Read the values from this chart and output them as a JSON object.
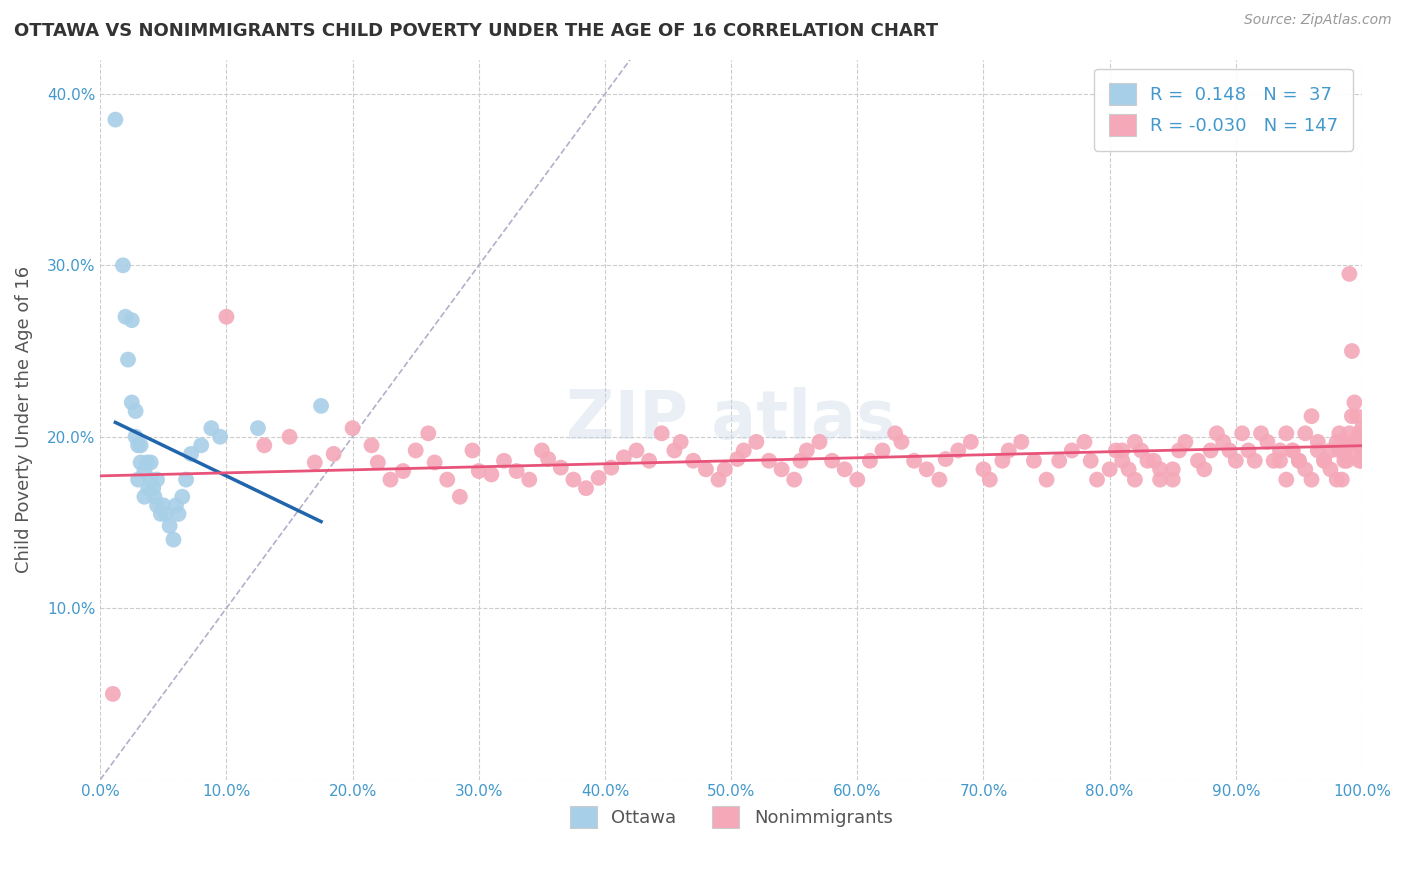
{
  "title": "OTTAWA VS NONIMMIGRANTS CHILD POVERTY UNDER THE AGE OF 16 CORRELATION CHART",
  "source": "Source: ZipAtlas.com",
  "ylabel": "Child Poverty Under the Age of 16",
  "xlim": [
    0,
    1.0
  ],
  "ylim": [
    0,
    0.42
  ],
  "xticks": [
    0.0,
    0.1,
    0.2,
    0.3,
    0.4,
    0.5,
    0.6,
    0.7,
    0.8,
    0.9,
    1.0
  ],
  "xticklabels": [
    "0.0%",
    "10.0%",
    "20.0%",
    "30.0%",
    "40.0%",
    "50.0%",
    "60.0%",
    "70.0%",
    "80.0%",
    "90.0%",
    "100.0%"
  ],
  "yticks": [
    0.0,
    0.1,
    0.2,
    0.3,
    0.4
  ],
  "yticklabels": [
    "",
    "10.0%",
    "20.0%",
    "30.0%",
    "40.0%"
  ],
  "ottawa_color": "#a8cfe8",
  "nonimmigrant_color": "#f4a8b8",
  "ottawa_trend_color": "#2166ac",
  "nonimmigrant_trend_color": "#e8537a",
  "diagonal_color": "#b0b0cc",
  "R_ottawa": 0.148,
  "N_ottawa": 37,
  "R_nonimmigrant": -0.03,
  "N_nonimmigrant": 147,
  "legend_label_ottawa": "Ottawa",
  "legend_label_nonimmigrant": "Nonimmigrants",
  "ottawa_x": [
    0.012,
    0.018,
    0.02,
    0.022,
    0.025,
    0.025,
    0.028,
    0.028,
    0.03,
    0.03,
    0.032,
    0.032,
    0.035,
    0.035,
    0.037,
    0.038,
    0.04,
    0.04,
    0.042,
    0.043,
    0.045,
    0.045,
    0.048,
    0.05,
    0.052,
    0.055,
    0.058,
    0.06,
    0.062,
    0.065,
    0.068,
    0.072,
    0.08,
    0.088,
    0.095,
    0.125,
    0.175
  ],
  "ottawa_y": [
    0.385,
    0.3,
    0.27,
    0.245,
    0.268,
    0.22,
    0.215,
    0.2,
    0.195,
    0.175,
    0.195,
    0.185,
    0.18,
    0.165,
    0.185,
    0.17,
    0.185,
    0.175,
    0.17,
    0.165,
    0.175,
    0.16,
    0.155,
    0.16,
    0.155,
    0.148,
    0.14,
    0.16,
    0.155,
    0.165,
    0.175,
    0.19,
    0.195,
    0.205,
    0.2,
    0.205,
    0.218
  ],
  "nonimmigrant_x": [
    0.01,
    0.1,
    0.13,
    0.15,
    0.17,
    0.185,
    0.2,
    0.215,
    0.22,
    0.23,
    0.24,
    0.25,
    0.26,
    0.265,
    0.275,
    0.285,
    0.295,
    0.3,
    0.31,
    0.32,
    0.33,
    0.34,
    0.35,
    0.355,
    0.365,
    0.375,
    0.385,
    0.395,
    0.405,
    0.415,
    0.425,
    0.435,
    0.445,
    0.455,
    0.46,
    0.47,
    0.48,
    0.49,
    0.495,
    0.505,
    0.51,
    0.52,
    0.53,
    0.54,
    0.55,
    0.555,
    0.56,
    0.57,
    0.58,
    0.59,
    0.6,
    0.61,
    0.62,
    0.63,
    0.635,
    0.645,
    0.655,
    0.665,
    0.67,
    0.68,
    0.69,
    0.7,
    0.705,
    0.715,
    0.72,
    0.73,
    0.74,
    0.75,
    0.76,
    0.77,
    0.78,
    0.785,
    0.79,
    0.8,
    0.81,
    0.82,
    0.83,
    0.84,
    0.85,
    0.855,
    0.86,
    0.87,
    0.875,
    0.88,
    0.885,
    0.89,
    0.895,
    0.9,
    0.905,
    0.91,
    0.915,
    0.92,
    0.925,
    0.93,
    0.935,
    0.94,
    0.945,
    0.95,
    0.955,
    0.96,
    0.965,
    0.97,
    0.975,
    0.98,
    0.982,
    0.984,
    0.986,
    0.988,
    0.99,
    0.992,
    0.994,
    0.996,
    0.998,
    1.0,
    1.0,
    1.0,
    1.0,
    1.0,
    1.0,
    1.0,
    0.998,
    0.996,
    0.994,
    0.992,
    0.99,
    0.988,
    0.986,
    0.984,
    0.982,
    0.98,
    0.975,
    0.97,
    0.965,
    0.96,
    0.955,
    0.95,
    0.945,
    0.94,
    0.935,
    0.85,
    0.84,
    0.835,
    0.825,
    0.82,
    0.815,
    0.81,
    0.805
  ],
  "nonimmigrant_y": [
    0.05,
    0.27,
    0.195,
    0.2,
    0.185,
    0.19,
    0.205,
    0.195,
    0.185,
    0.175,
    0.18,
    0.192,
    0.202,
    0.185,
    0.175,
    0.165,
    0.192,
    0.18,
    0.178,
    0.186,
    0.18,
    0.175,
    0.192,
    0.187,
    0.182,
    0.175,
    0.17,
    0.176,
    0.182,
    0.188,
    0.192,
    0.186,
    0.202,
    0.192,
    0.197,
    0.186,
    0.181,
    0.175,
    0.181,
    0.187,
    0.192,
    0.197,
    0.186,
    0.181,
    0.175,
    0.186,
    0.192,
    0.197,
    0.186,
    0.181,
    0.175,
    0.186,
    0.192,
    0.202,
    0.197,
    0.186,
    0.181,
    0.175,
    0.187,
    0.192,
    0.197,
    0.181,
    0.175,
    0.186,
    0.192,
    0.197,
    0.186,
    0.175,
    0.186,
    0.192,
    0.197,
    0.186,
    0.175,
    0.181,
    0.192,
    0.197,
    0.186,
    0.175,
    0.181,
    0.192,
    0.197,
    0.186,
    0.181,
    0.192,
    0.202,
    0.197,
    0.192,
    0.186,
    0.202,
    0.192,
    0.186,
    0.202,
    0.197,
    0.186,
    0.192,
    0.202,
    0.192,
    0.186,
    0.202,
    0.212,
    0.197,
    0.186,
    0.192,
    0.197,
    0.202,
    0.197,
    0.192,
    0.186,
    0.202,
    0.212,
    0.197,
    0.192,
    0.186,
    0.197,
    0.192,
    0.202,
    0.192,
    0.186,
    0.197,
    0.205,
    0.202,
    0.212,
    0.22,
    0.25,
    0.295,
    0.195,
    0.186,
    0.175,
    0.192,
    0.175,
    0.181,
    0.186,
    0.192,
    0.175,
    0.181,
    0.186,
    0.192,
    0.175,
    0.186,
    0.175,
    0.181,
    0.186,
    0.192,
    0.175,
    0.181,
    0.186,
    0.192
  ],
  "background_color": "#ffffff",
  "grid_color": "#cccccc",
  "title_color": "#333333",
  "axis_tick_color": "#4499cc",
  "ylabel_color": "#555555",
  "watermark_text": "ZIPAtlas"
}
